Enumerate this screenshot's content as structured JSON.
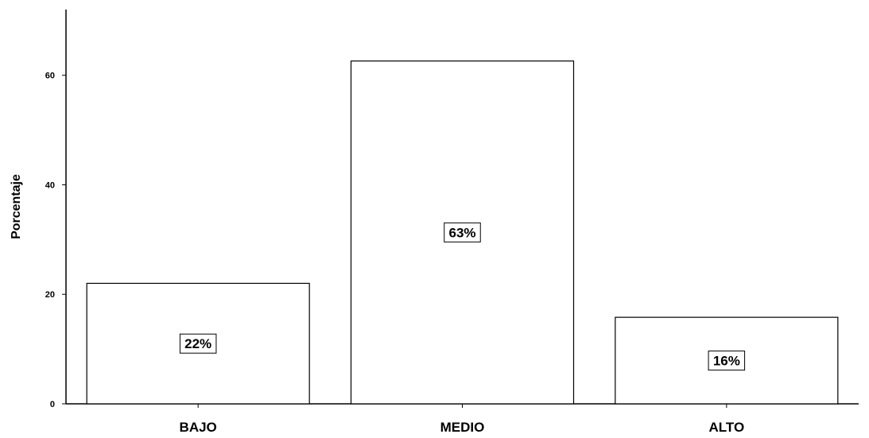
{
  "chart_data": {
    "type": "bar",
    "categories": [
      "BAJO",
      "MEDIO",
      "ALTO"
    ],
    "values": [
      22,
      62.6,
      15.8
    ],
    "data_labels": [
      "22%",
      "63%",
      "16%"
    ],
    "title": "",
    "xlabel": "",
    "ylabel": "Porcentaje",
    "ylim": [
      0,
      72
    ],
    "yticks": [
      0,
      20,
      40,
      60
    ],
    "grid": false,
    "colors": {
      "bar_fill": "#ffffff",
      "bar_stroke": "#000000"
    }
  }
}
